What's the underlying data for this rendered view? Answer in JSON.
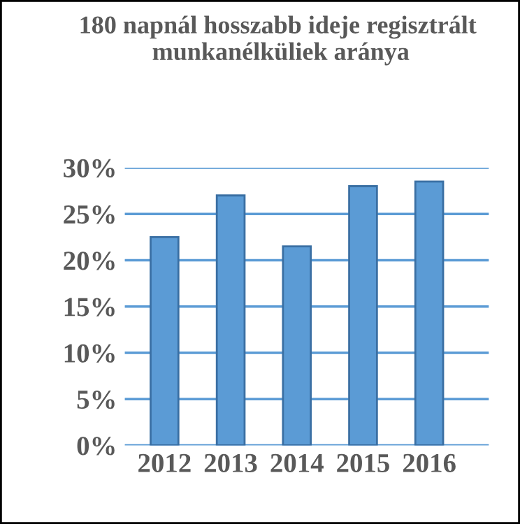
{
  "chart_data": {
    "type": "bar",
    "title": "180 napnál hosszabb ideje regisztrált  munkanélküliek aránya",
    "categories": [
      "2012",
      "2013",
      "2014",
      "2015",
      "2016"
    ],
    "values": [
      22.5,
      27,
      21.5,
      28,
      28.5
    ],
    "color": "#5b9bd5",
    "ylim": [
      0,
      30
    ],
    "yticks": [
      {
        "value": 0,
        "label": "0%"
      },
      {
        "value": 5,
        "label": "5%"
      },
      {
        "value": 10,
        "label": "10%"
      },
      {
        "value": 15,
        "label": "15%"
      },
      {
        "value": 20,
        "label": "20%"
      },
      {
        "value": 25,
        "label": "25%"
      },
      {
        "value": 30,
        "label": "30%"
      }
    ],
    "grid": "y",
    "legend": false
  }
}
